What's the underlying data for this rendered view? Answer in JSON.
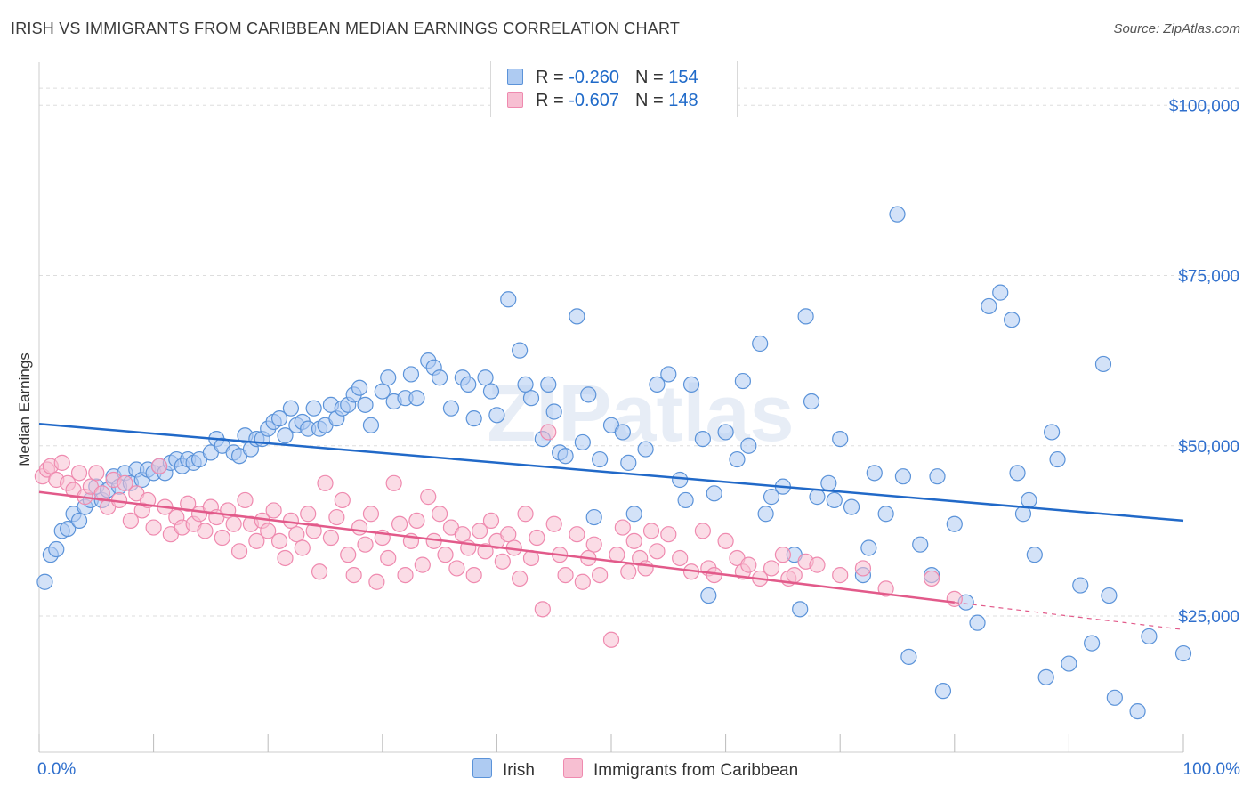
{
  "title": "IRISH VS IMMIGRANTS FROM CARIBBEAN MEDIAN EARNINGS CORRELATION CHART",
  "source": "Source: ZipAtlas.com",
  "watermark": "ZIPatlas",
  "colors": {
    "blue_fill": "#aecbf2",
    "blue_stroke": "#5b93d9",
    "blue_line": "#2169c8",
    "pink_fill": "#f7bfd2",
    "pink_stroke": "#ef8aaf",
    "pink_line": "#e25a8a",
    "axis_text": "#2f6fcd",
    "grid": "#dddddd"
  },
  "legend_top": [
    {
      "r_label": "R =",
      "r_value": "-0.260",
      "n_label": "N =",
      "n_value": "154"
    },
    {
      "r_label": "R =",
      "r_value": "-0.607",
      "n_label": "N =",
      "n_value": "148"
    }
  ],
  "legend_bottom": [
    "Irish",
    "Immigrants from Caribbean"
  ],
  "chart_data": {
    "type": "scatter",
    "title": "IRISH VS IMMIGRANTS FROM CARIBBEAN MEDIAN EARNINGS CORRELATION CHART",
    "xlabel": "",
    "ylabel": "Median Earnings",
    "xlim": [
      0,
      100
    ],
    "ylim": [
      5000,
      105000
    ],
    "x_tick_labels": [
      "0.0%",
      "100.0%"
    ],
    "y_ticks": [
      25000,
      50000,
      75000,
      100000
    ],
    "y_tick_labels": [
      "$25,000",
      "$50,000",
      "$75,000",
      "$100,000"
    ],
    "grid": true,
    "series": [
      {
        "name": "Irish",
        "R": -0.26,
        "N": 154,
        "trend": {
          "x": [
            0,
            100
          ],
          "y": [
            53200,
            39000
          ],
          "dashed_from": null
        },
        "points": [
          [
            0.5,
            30000
          ],
          [
            1,
            34000
          ],
          [
            1.5,
            34800
          ],
          [
            2,
            37500
          ],
          [
            2.5,
            37800
          ],
          [
            3,
            40000
          ],
          [
            3.5,
            39000
          ],
          [
            4,
            41000
          ],
          [
            4.5,
            42000
          ],
          [
            5,
            44000
          ],
          [
            5.5,
            42000
          ],
          [
            6,
            43500
          ],
          [
            6.5,
            45500
          ],
          [
            7,
            44000
          ],
          [
            7.5,
            46000
          ],
          [
            8,
            44500
          ],
          [
            8.5,
            46500
          ],
          [
            9,
            45000
          ],
          [
            9.5,
            46500
          ],
          [
            10,
            46000
          ],
          [
            10.5,
            47000
          ],
          [
            11,
            46000
          ],
          [
            11.5,
            47500
          ],
          [
            12,
            48000
          ],
          [
            12.5,
            47000
          ],
          [
            13,
            48000
          ],
          [
            13.5,
            47500
          ],
          [
            14,
            48000
          ],
          [
            15,
            49000
          ],
          [
            15.5,
            51000
          ],
          [
            16,
            50000
          ],
          [
            17,
            49000
          ],
          [
            17.5,
            48500
          ],
          [
            18,
            51500
          ],
          [
            18.5,
            49500
          ],
          [
            19,
            51000
          ],
          [
            19.5,
            51000
          ],
          [
            20,
            52500
          ],
          [
            20.5,
            53500
          ],
          [
            21,
            54000
          ],
          [
            21.5,
            51500
          ],
          [
            22,
            55500
          ],
          [
            22.5,
            53000
          ],
          [
            23,
            53500
          ],
          [
            23.5,
            52500
          ],
          [
            24,
            55500
          ],
          [
            24.5,
            52500
          ],
          [
            25,
            53000
          ],
          [
            25.5,
            56000
          ],
          [
            26,
            54000
          ],
          [
            26.5,
            55500
          ],
          [
            27,
            56000
          ],
          [
            27.5,
            57500
          ],
          [
            28,
            58500
          ],
          [
            28.5,
            56000
          ],
          [
            29,
            53000
          ],
          [
            30,
            58000
          ],
          [
            30.5,
            60000
          ],
          [
            31,
            56500
          ],
          [
            32,
            57000
          ],
          [
            32.5,
            60500
          ],
          [
            33,
            57000
          ],
          [
            34,
            62500
          ],
          [
            34.5,
            61500
          ],
          [
            35,
            60000
          ],
          [
            36,
            55500
          ],
          [
            37,
            60000
          ],
          [
            37.5,
            59000
          ],
          [
            38,
            54000
          ],
          [
            39,
            60000
          ],
          [
            39.5,
            58000
          ],
          [
            40,
            54500
          ],
          [
            41,
            71500
          ],
          [
            42,
            64000
          ],
          [
            42.5,
            59000
          ],
          [
            43,
            57000
          ],
          [
            44,
            51000
          ],
          [
            44.5,
            59000
          ],
          [
            45,
            55000
          ],
          [
            45.5,
            49000
          ],
          [
            46,
            48500
          ],
          [
            47,
            69000
          ],
          [
            47.5,
            50500
          ],
          [
            48,
            57500
          ],
          [
            48.5,
            39500
          ],
          [
            49,
            48000
          ],
          [
            50,
            53000
          ],
          [
            51,
            52000
          ],
          [
            51.5,
            47500
          ],
          [
            52,
            40000
          ],
          [
            53,
            49500
          ],
          [
            54,
            59000
          ],
          [
            55,
            60500
          ],
          [
            56,
            45000
          ],
          [
            56.5,
            42000
          ],
          [
            57,
            59000
          ],
          [
            58,
            51000
          ],
          [
            58.5,
            28000
          ],
          [
            59,
            43000
          ],
          [
            60,
            52000
          ],
          [
            61,
            48000
          ],
          [
            61.5,
            59500
          ],
          [
            62,
            50000
          ],
          [
            63,
            65000
          ],
          [
            63.5,
            40000
          ],
          [
            64,
            42500
          ],
          [
            65,
            44000
          ],
          [
            66,
            34000
          ],
          [
            66.5,
            26000
          ],
          [
            67,
            69000
          ],
          [
            67.5,
            56500
          ],
          [
            68,
            42500
          ],
          [
            69,
            44500
          ],
          [
            69.5,
            42000
          ],
          [
            70,
            51000
          ],
          [
            71,
            41000
          ],
          [
            72,
            31000
          ],
          [
            72.5,
            35000
          ],
          [
            73,
            46000
          ],
          [
            74,
            40000
          ],
          [
            75,
            84000
          ],
          [
            75.5,
            45500
          ],
          [
            76,
            19000
          ],
          [
            77,
            35500
          ],
          [
            78,
            31000
          ],
          [
            78.5,
            45500
          ],
          [
            79,
            14000
          ],
          [
            80,
            38500
          ],
          [
            81,
            27000
          ],
          [
            82,
            24000
          ],
          [
            83,
            70500
          ],
          [
            84,
            72500
          ],
          [
            85,
            68500
          ],
          [
            85.5,
            46000
          ],
          [
            86,
            40000
          ],
          [
            86.5,
            42000
          ],
          [
            87,
            34000
          ],
          [
            88,
            16000
          ],
          [
            88.5,
            52000
          ],
          [
            89,
            48000
          ],
          [
            90,
            18000
          ],
          [
            91,
            29500
          ],
          [
            92,
            21000
          ],
          [
            93,
            62000
          ],
          [
            93.5,
            28000
          ],
          [
            94,
            13000
          ],
          [
            96,
            11000
          ],
          [
            97,
            22000
          ],
          [
            100,
            19500
          ]
        ]
      },
      {
        "name": "Immigrants from Caribbean",
        "R": -0.607,
        "N": 148,
        "trend": {
          "x": [
            0,
            80,
            100
          ],
          "y": [
            43200,
            27000,
            23000
          ],
          "dashed_from": 80
        },
        "points": [
          [
            0.3,
            45500
          ],
          [
            0.7,
            46500
          ],
          [
            1,
            47000
          ],
          [
            1.5,
            45000
          ],
          [
            2,
            47500
          ],
          [
            2.5,
            44500
          ],
          [
            3,
            43500
          ],
          [
            3.5,
            46000
          ],
          [
            4,
            42500
          ],
          [
            4.5,
            44000
          ],
          [
            5,
            46000
          ],
          [
            5.5,
            43000
          ],
          [
            6,
            41000
          ],
          [
            6.5,
            45000
          ],
          [
            7,
            42000
          ],
          [
            7.5,
            44500
          ],
          [
            8,
            39000
          ],
          [
            8.5,
            43000
          ],
          [
            9,
            40500
          ],
          [
            9.5,
            42000
          ],
          [
            10,
            38000
          ],
          [
            10.5,
            47000
          ],
          [
            11,
            41000
          ],
          [
            11.5,
            37000
          ],
          [
            12,
            39500
          ],
          [
            12.5,
            38000
          ],
          [
            13,
            41500
          ],
          [
            13.5,
            38500
          ],
          [
            14,
            40000
          ],
          [
            14.5,
            37500
          ],
          [
            15,
            41000
          ],
          [
            15.5,
            39500
          ],
          [
            16,
            36500
          ],
          [
            16.5,
            40500
          ],
          [
            17,
            38500
          ],
          [
            17.5,
            34500
          ],
          [
            18,
            42000
          ],
          [
            18.5,
            38500
          ],
          [
            19,
            36000
          ],
          [
            19.5,
            39000
          ],
          [
            20,
            37500
          ],
          [
            20.5,
            40500
          ],
          [
            21,
            36000
          ],
          [
            21.5,
            33500
          ],
          [
            22,
            39000
          ],
          [
            22.5,
            37000
          ],
          [
            23,
            35000
          ],
          [
            23.5,
            40000
          ],
          [
            24,
            37500
          ],
          [
            24.5,
            31500
          ],
          [
            25,
            44500
          ],
          [
            25.5,
            36500
          ],
          [
            26,
            39500
          ],
          [
            26.5,
            42000
          ],
          [
            27,
            34000
          ],
          [
            27.5,
            31000
          ],
          [
            28,
            38000
          ],
          [
            28.5,
            35500
          ],
          [
            29,
            40000
          ],
          [
            29.5,
            30000
          ],
          [
            30,
            36500
          ],
          [
            30.5,
            33500
          ],
          [
            31,
            44500
          ],
          [
            31.5,
            38500
          ],
          [
            32,
            31000
          ],
          [
            32.5,
            36000
          ],
          [
            33,
            39000
          ],
          [
            33.5,
            32500
          ],
          [
            34,
            42500
          ],
          [
            34.5,
            36000
          ],
          [
            35,
            40000
          ],
          [
            35.5,
            34000
          ],
          [
            36,
            38000
          ],
          [
            36.5,
            32000
          ],
          [
            37,
            37000
          ],
          [
            37.5,
            35000
          ],
          [
            38,
            31000
          ],
          [
            38.5,
            37500
          ],
          [
            39,
            34500
          ],
          [
            39.5,
            39000
          ],
          [
            40,
            36000
          ],
          [
            40.5,
            33000
          ],
          [
            41,
            37000
          ],
          [
            41.5,
            35000
          ],
          [
            42,
            30500
          ],
          [
            42.5,
            40000
          ],
          [
            43,
            33500
          ],
          [
            43.5,
            36500
          ],
          [
            44,
            26000
          ],
          [
            44.5,
            52000
          ],
          [
            45,
            38500
          ],
          [
            45.5,
            34000
          ],
          [
            46,
            31000
          ],
          [
            47,
            37000
          ],
          [
            47.5,
            30000
          ],
          [
            48,
            33500
          ],
          [
            48.5,
            35500
          ],
          [
            49,
            31000
          ],
          [
            50,
            21500
          ],
          [
            50.5,
            34000
          ],
          [
            51,
            38000
          ],
          [
            51.5,
            31500
          ],
          [
            52,
            36000
          ],
          [
            52.5,
            33500
          ],
          [
            53,
            32000
          ],
          [
            53.5,
            37500
          ],
          [
            54,
            34500
          ],
          [
            55,
            37000
          ],
          [
            56,
            33500
          ],
          [
            57,
            31500
          ],
          [
            58,
            37500
          ],
          [
            58.5,
            32000
          ],
          [
            59,
            31000
          ],
          [
            60,
            36000
          ],
          [
            61,
            33500
          ],
          [
            61.5,
            31500
          ],
          [
            62,
            32500
          ],
          [
            63,
            30500
          ],
          [
            64,
            32000
          ],
          [
            65,
            34000
          ],
          [
            65.5,
            30500
          ],
          [
            66,
            31000
          ],
          [
            67,
            33000
          ],
          [
            68,
            32500
          ],
          [
            70,
            31000
          ],
          [
            72,
            32000
          ],
          [
            74,
            29000
          ],
          [
            78,
            30500
          ],
          [
            80,
            27500
          ]
        ]
      }
    ]
  }
}
